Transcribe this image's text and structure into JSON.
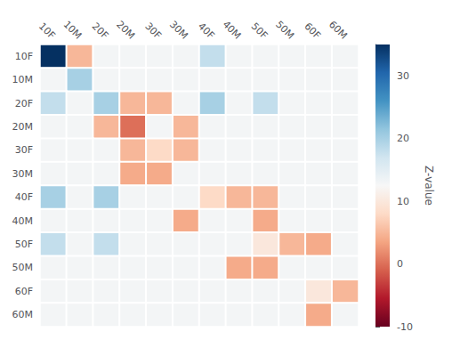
{
  "chart_data": {
    "type": "heatmap",
    "row_labels": [
      "10F",
      "10M",
      "20F",
      "20M",
      "30F",
      "30M",
      "40F",
      "40M",
      "50F",
      "50M",
      "60F",
      "60M"
    ],
    "col_labels": [
      "10F",
      "10M",
      "20F",
      "20M",
      "30F",
      "30M",
      "40F",
      "40M",
      "50F",
      "50M",
      "60F",
      "60M"
    ],
    "matrix": [
      [
        35,
        5,
        13,
        13,
        13,
        13,
        18,
        13,
        13,
        13,
        13,
        13
      ],
      [
        13,
        20,
        13,
        13,
        13,
        13,
        13,
        13,
        13,
        13,
        13,
        13
      ],
      [
        18,
        13,
        20,
        5,
        5,
        13,
        20,
        13,
        18,
        13,
        13,
        13
      ],
      [
        13,
        13,
        5,
        0,
        13,
        5,
        13,
        13,
        13,
        13,
        13,
        13
      ],
      [
        13,
        13,
        13,
        5,
        8,
        5,
        13,
        13,
        13,
        13,
        13,
        13
      ],
      [
        13,
        13,
        13,
        4,
        4,
        13,
        13,
        13,
        13,
        13,
        13,
        13
      ],
      [
        20,
        13,
        20,
        13,
        13,
        13,
        8,
        5,
        5,
        13,
        13,
        13
      ],
      [
        13,
        13,
        13,
        13,
        13,
        4,
        13,
        13,
        4,
        13,
        13,
        13
      ],
      [
        18,
        13,
        18,
        13,
        13,
        13,
        13,
        13,
        10,
        5,
        4,
        13
      ],
      [
        13,
        13,
        13,
        13,
        13,
        13,
        13,
        4,
        4,
        13,
        13,
        13
      ],
      [
        13,
        13,
        13,
        13,
        13,
        13,
        13,
        13,
        13,
        13,
        10,
        5
      ],
      [
        13,
        13,
        13,
        13,
        13,
        13,
        13,
        13,
        13,
        13,
        4,
        13
      ]
    ],
    "colorbar": {
      "label": "Z-value",
      "range": [
        -10,
        35
      ],
      "ticks": [
        -10,
        0,
        10,
        20,
        30
      ],
      "colors": [
        "#67001f",
        "#b2182b",
        "#d6604d",
        "#f4a582",
        "#fddbc7",
        "#f7f7f7",
        "#d1e5f0",
        "#92c5de",
        "#4393c3",
        "#2166ac",
        "#053061"
      ]
    },
    "grid": true
  }
}
